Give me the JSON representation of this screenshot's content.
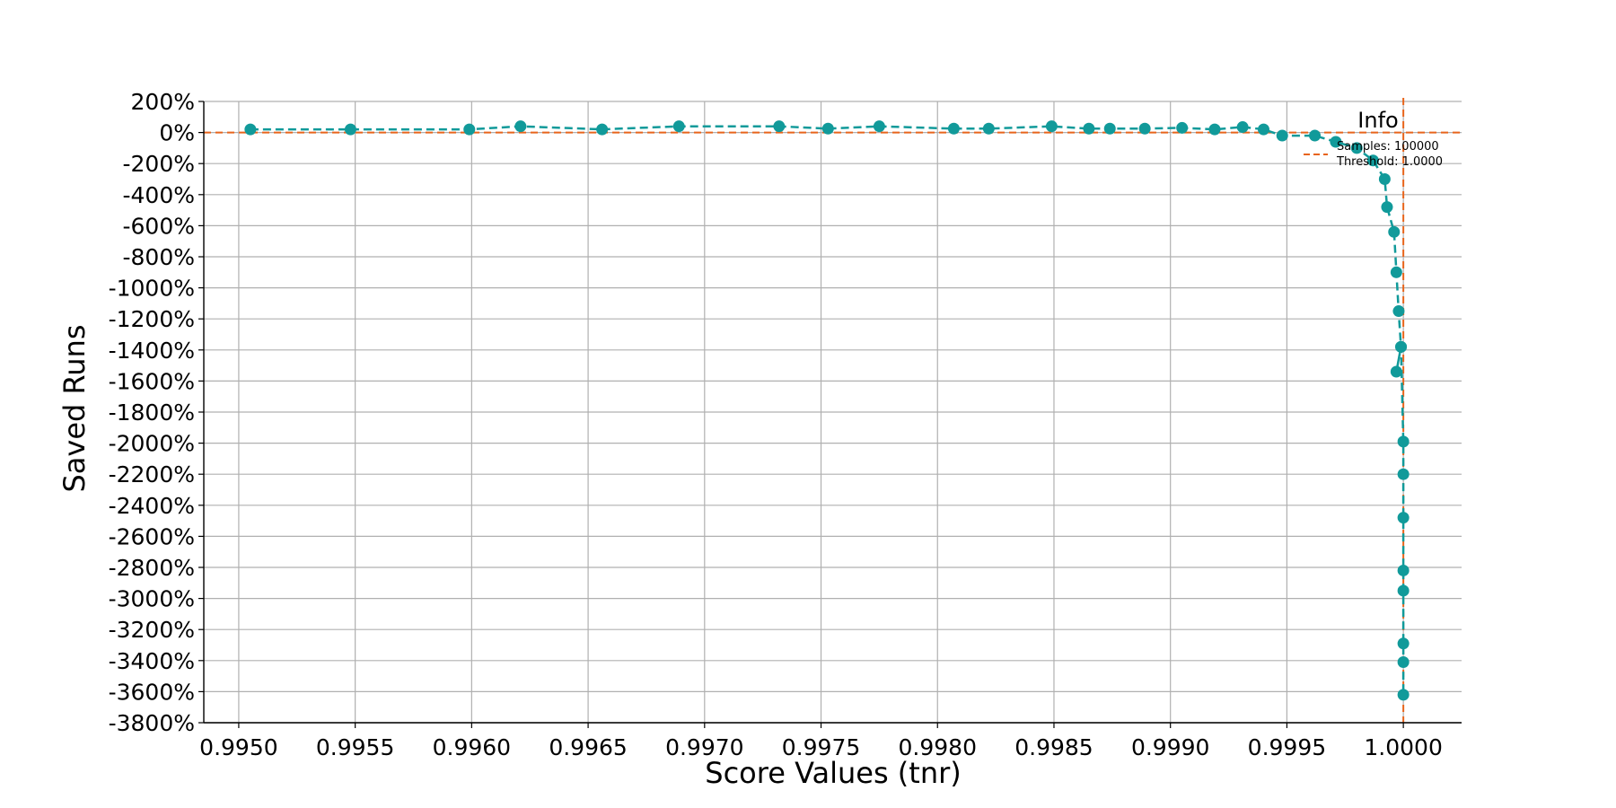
{
  "chart_data": {
    "type": "line",
    "xlabel": "Score Values (tnr)",
    "ylabel": "Saved Runs",
    "xlim": [
      0.99485,
      1.00025
    ],
    "ylim": [
      -3800,
      200
    ],
    "x_ticks": [
      "0.9950",
      "0.9955",
      "0.9960",
      "0.9965",
      "0.9970",
      "0.9975",
      "0.9980",
      "0.9985",
      "0.9990",
      "0.9995",
      "1.0000"
    ],
    "x_tick_values": [
      0.995,
      0.9955,
      0.996,
      0.9965,
      0.997,
      0.9975,
      0.998,
      0.9985,
      0.999,
      0.9995,
      1.0
    ],
    "y_ticks": [
      "200%",
      "0%",
      "-200%",
      "-400%",
      "-600%",
      "-800%",
      "-1000%",
      "-1200%",
      "-1400%",
      "-1600%",
      "-1800%",
      "-2000%",
      "-2200%",
      "-2400%",
      "-2600%",
      "-2800%",
      "-3000%",
      "-3200%",
      "-3400%",
      "-3600%",
      "-3800%"
    ],
    "y_tick_values": [
      200,
      0,
      -200,
      -400,
      -600,
      -800,
      -1000,
      -1200,
      -1400,
      -1600,
      -1800,
      -2000,
      -2200,
      -2400,
      -2600,
      -2800,
      -3000,
      -3200,
      -3400,
      -3600,
      -3800
    ],
    "grid": true,
    "series": [
      {
        "color": "#119a9a",
        "x": [
          0.99505,
          0.99548,
          0.99599,
          0.99621,
          0.99656,
          0.99689,
          0.99732,
          0.99753,
          0.99775,
          0.99807,
          0.99822,
          0.99849,
          0.99865,
          0.99874,
          0.99889,
          0.99905,
          0.99919,
          0.99931,
          0.9994,
          0.99948,
          0.99962,
          0.99971,
          0.9998,
          0.99987,
          0.99992,
          0.99993,
          0.99996,
          0.99997,
          0.99998,
          0.99999,
          0.99997,
          0.99999,
          1.0,
          1.0,
          1.0,
          1.0,
          1.0,
          1.0,
          1.0,
          1.0
        ],
        "y": [
          20,
          20,
          20,
          40,
          20,
          40,
          40,
          25,
          40,
          25,
          25,
          40,
          25,
          25,
          25,
          30,
          20,
          35,
          20,
          -20,
          -20,
          -60,
          -100,
          -180,
          -300,
          -480,
          -640,
          -900,
          -1150,
          -1380,
          -1540,
          -1380,
          -1990,
          -2200,
          -2480,
          -2820,
          -2950,
          -3290,
          -3410,
          -3620
        ]
      }
    ],
    "reference_lines": {
      "horizontal_y": 0,
      "vertical_x": 1.0,
      "color": "#e8641b"
    },
    "legend": {
      "title": "Info",
      "placement": "top-right",
      "entries": [
        "Samples: 100000",
        "Threshold: 1.0000"
      ]
    }
  }
}
